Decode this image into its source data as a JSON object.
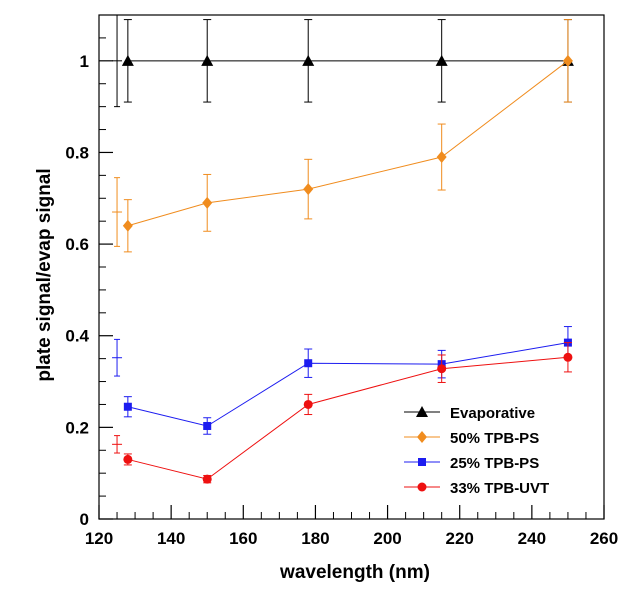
{
  "chart_data": {
    "type": "scatter",
    "xlabel": "wavelength (nm)",
    "ylabel": "plate signal/evap signal",
    "xlim": [
      120,
      260
    ],
    "ylim": [
      0,
      1.1
    ],
    "x_ticks": [
      "120",
      "140",
      "160",
      "180",
      "200",
      "220",
      "240",
      "260"
    ],
    "y_ticks": [
      "0",
      "0.2",
      "0.4",
      "0.6",
      "0.8",
      "1"
    ],
    "grid": false,
    "legend_position": "bottom-right",
    "series": [
      {
        "name": "Evaporative",
        "color": "#000000",
        "marker": "triangle",
        "points": [
          {
            "x": 128,
            "y": 1.0,
            "err": 0.09
          },
          {
            "x": 150,
            "y": 1.0,
            "err": 0.09
          },
          {
            "x": 178,
            "y": 1.0,
            "err": 0.09
          },
          {
            "x": 215,
            "y": 1.0,
            "err": 0.09
          },
          {
            "x": 250,
            "y": 1.0,
            "err": 0.09
          }
        ],
        "extra_points": [
          {
            "x": 125,
            "y": 1.0,
            "err": 0.1
          }
        ]
      },
      {
        "name": "50% TPB-PS",
        "color": "#f08c1e",
        "marker": "diamond",
        "points": [
          {
            "x": 128,
            "y": 0.64,
            "err": 0.057
          },
          {
            "x": 150,
            "y": 0.69,
            "err": 0.062
          },
          {
            "x": 178,
            "y": 0.72,
            "err": 0.065
          },
          {
            "x": 215,
            "y": 0.79,
            "err": 0.072
          },
          {
            "x": 250,
            "y": 1.0,
            "err": 0.09
          }
        ],
        "extra_points": [
          {
            "x": 125,
            "y": 0.67,
            "err": 0.075
          }
        ]
      },
      {
        "name": "25% TPB-PS",
        "color": "#1c1cf0",
        "marker": "square",
        "points": [
          {
            "x": 128,
            "y": 0.245,
            "err": 0.022
          },
          {
            "x": 150,
            "y": 0.203,
            "err": 0.018
          },
          {
            "x": 178,
            "y": 0.34,
            "err": 0.031
          },
          {
            "x": 215,
            "y": 0.338,
            "err": 0.03
          },
          {
            "x": 250,
            "y": 0.385,
            "err": 0.035
          }
        ],
        "extra_points": [
          {
            "x": 125,
            "y": 0.352,
            "err": 0.04
          }
        ]
      },
      {
        "name": "33% TPB-UVT",
        "color": "#ee1010",
        "marker": "circle",
        "points": [
          {
            "x": 128,
            "y": 0.13,
            "err": 0.012
          },
          {
            "x": 150,
            "y": 0.087,
            "err": 0.008
          },
          {
            "x": 178,
            "y": 0.25,
            "err": 0.022
          },
          {
            "x": 215,
            "y": 0.328,
            "err": 0.03
          },
          {
            "x": 250,
            "y": 0.353,
            "err": 0.032
          }
        ],
        "extra_points": [
          {
            "x": 125,
            "y": 0.163,
            "err": 0.019
          }
        ]
      }
    ]
  }
}
